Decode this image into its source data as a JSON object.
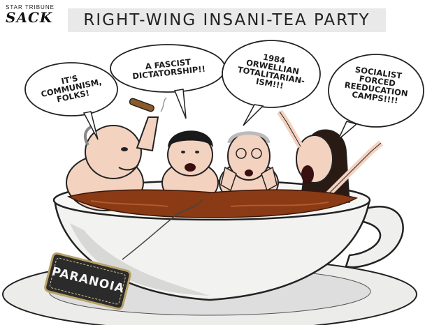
{
  "header": {
    "publication": "STAR TRIBUNE",
    "artist": "SACK",
    "title": "RIGHT-WING INSANI-TEA PARTY"
  },
  "bubbles": [
    {
      "text": "IT'S\nCOMMUNISM,\nFOLKS!"
    },
    {
      "text": "A FASCIST\nDICTATORSHIP!!"
    },
    {
      "text": "1984\nORWELLIAN\nTOTALITARIAN-\nISM!!!"
    },
    {
      "text": "SOCIALIST\nFORCED\nREEDUCATION\nCAMPS!!!!"
    }
  ],
  "teabag": {
    "label": "PARANOIA"
  },
  "colors": {
    "tea": "#8a3a14",
    "cup": "#f2f2f0",
    "title_band": "#e9e9e9",
    "skin": "#f3d2c0"
  }
}
